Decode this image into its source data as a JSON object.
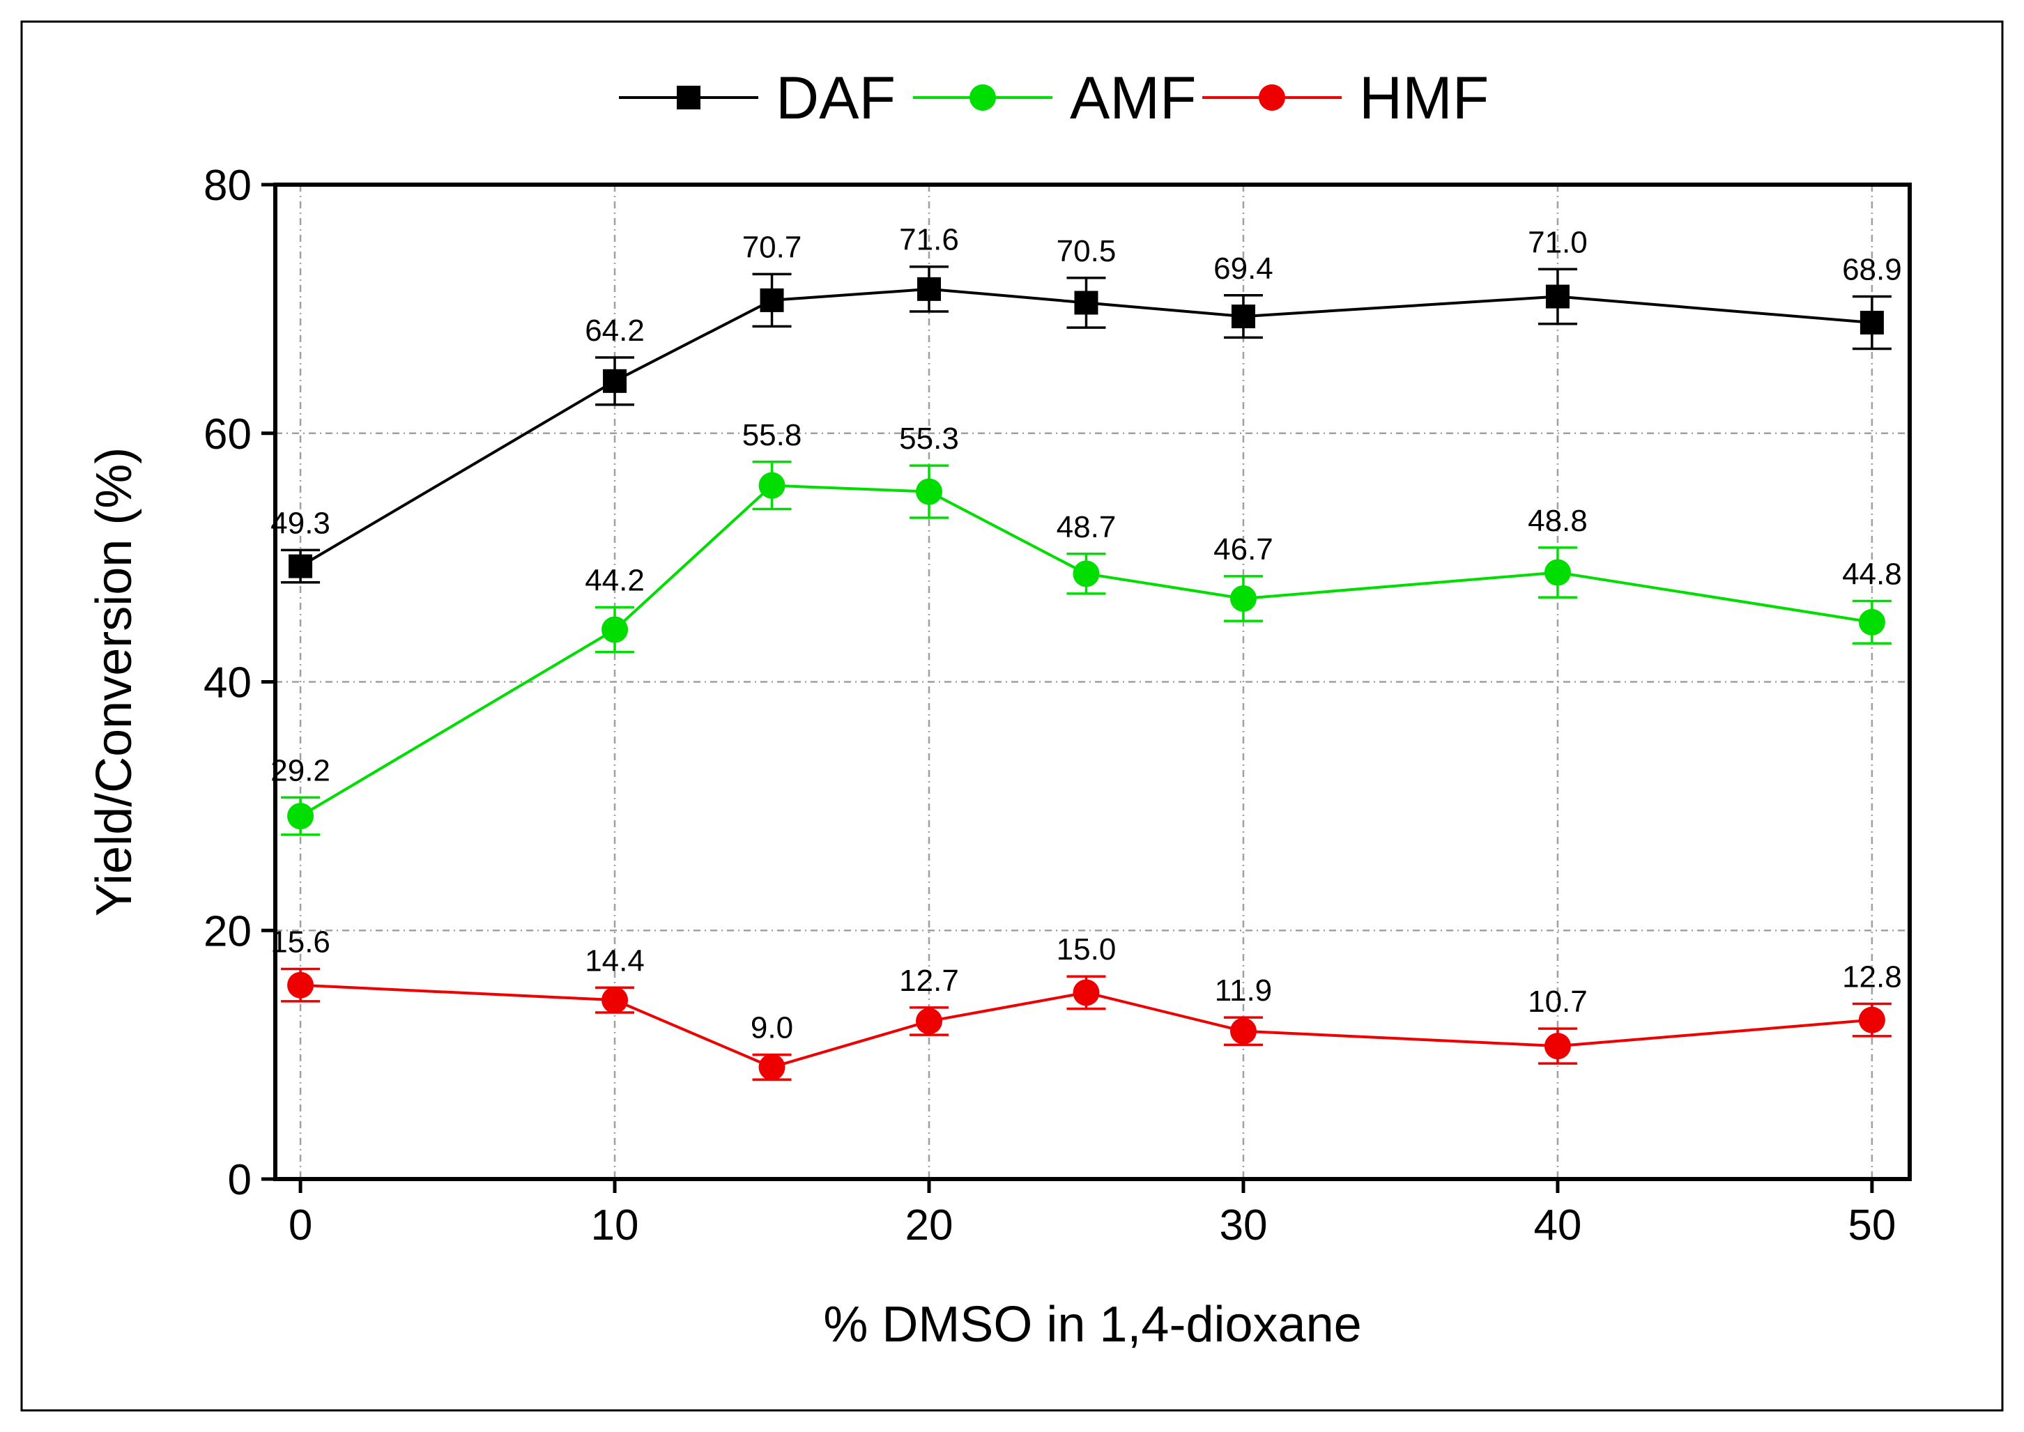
{
  "chart_data": {
    "type": "line",
    "title": "",
    "xlabel": "% DMSO in 1,4-dioxane",
    "ylabel": "Yield/Conversion (%)",
    "x": [
      0,
      10,
      15,
      20,
      25,
      30,
      40,
      50
    ],
    "xlim": [
      -0.8,
      51.2
    ],
    "ylim": [
      0,
      80
    ],
    "xticks": [
      0,
      10,
      20,
      30,
      40,
      50
    ],
    "yticks": [
      0,
      20,
      40,
      60,
      80
    ],
    "grid": true,
    "legend_position": "top",
    "series": [
      {
        "name": "DAF",
        "color": "#000000",
        "marker": "square",
        "values": [
          49.3,
          64.2,
          70.7,
          71.6,
          70.5,
          69.4,
          71.0,
          68.9
        ],
        "labels": [
          "49.3",
          "64.2",
          "70.7",
          "71.6",
          "70.5",
          "69.4",
          "71.0",
          "68.9"
        ],
        "errors": [
          1.3,
          1.9,
          2.1,
          1.8,
          2.0,
          1.7,
          2.2,
          2.1
        ]
      },
      {
        "name": "AMF",
        "color": "#00dd00",
        "marker": "circle",
        "values": [
          29.2,
          44.2,
          55.8,
          55.3,
          48.7,
          46.7,
          48.8,
          44.8
        ],
        "labels": [
          "29.2",
          "44.2",
          "55.8",
          "55.3",
          "48.7",
          "46.7",
          "48.8",
          "44.8"
        ],
        "errors": [
          1.5,
          1.8,
          1.9,
          2.1,
          1.6,
          1.8,
          2.0,
          1.7
        ]
      },
      {
        "name": "HMF",
        "color": "#ee0000",
        "marker": "circle",
        "values": [
          15.6,
          14.4,
          9.0,
          12.7,
          15.0,
          11.9,
          10.7,
          12.8
        ],
        "labels": [
          "15.6",
          "14.4",
          "9.0",
          "12.7",
          "15.0",
          "11.9",
          "10.7",
          "12.8"
        ],
        "errors": [
          1.3,
          1.0,
          1.0,
          1.1,
          1.3,
          1.1,
          1.4,
          1.3
        ]
      }
    ]
  }
}
